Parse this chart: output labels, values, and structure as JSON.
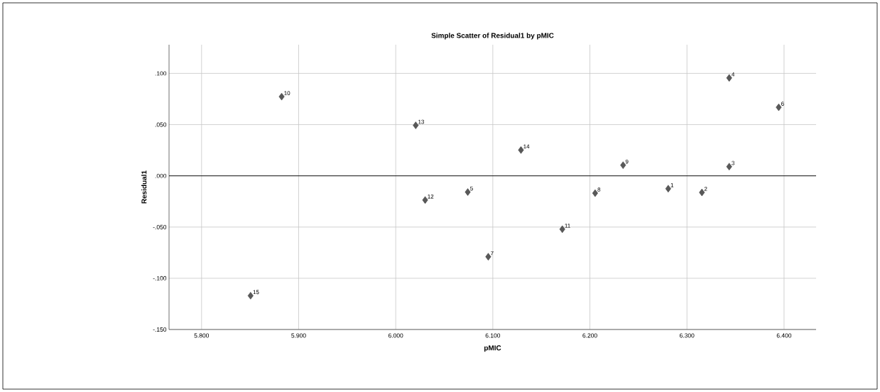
{
  "chart_data": {
    "type": "scatter",
    "title": "Simple Scatter of Residual1 by pMIC",
    "xlabel": "pMIC",
    "ylabel": "Residual1",
    "x": [
      6.2807,
      6.3154,
      6.3435,
      6.3435,
      6.0742,
      6.3945,
      6.0953,
      6.2054,
      6.2342,
      5.8825,
      6.1716,
      6.0303,
      6.0206,
      6.129,
      5.8505
    ],
    "series": [
      {
        "color": "#595959",
        "values": [
          -0.0125,
          -0.0162,
          0.009,
          0.0956,
          -0.0158,
          0.0669,
          -0.079,
          -0.0169,
          0.0104,
          0.0773,
          -0.0521,
          -0.0236,
          0.0493,
          0.0252,
          -0.117
        ]
      }
    ],
    "annotations": [
      {
        "text": "1",
        "x": 6.2807,
        "y": -0.0125
      },
      {
        "text": "2",
        "x": 6.3154,
        "y": -0.0162
      },
      {
        "text": "3",
        "x": 6.3435,
        "y": 0.009
      },
      {
        "text": "4",
        "x": 6.3435,
        "y": 0.0956
      },
      {
        "text": "5",
        "x": 6.0742,
        "y": -0.0158
      },
      {
        "text": "6",
        "x": 6.3945,
        "y": 0.0669
      },
      {
        "text": "7",
        "x": 6.0953,
        "y": -0.079
      },
      {
        "text": "8",
        "x": 6.2054,
        "y": -0.0169
      },
      {
        "text": "9",
        "x": 6.2342,
        "y": 0.0104
      },
      {
        "text": "10",
        "x": 5.8825,
        "y": 0.0773
      },
      {
        "text": "11",
        "x": 6.1716,
        "y": -0.0521
      },
      {
        "text": "12",
        "x": 6.0303,
        "y": -0.0236
      },
      {
        "text": "13",
        "x": 6.0206,
        "y": 0.0493
      },
      {
        "text": "14",
        "x": 6.129,
        "y": 0.0252
      },
      {
        "text": "15",
        "x": 5.8505,
        "y": -0.117
      }
    ],
    "xlim": [
      5.7665,
      6.433
    ],
    "ylim": [
      -0.15,
      0.128
    ],
    "xticks": [
      {
        "value": 5.8,
        "label": "5.800"
      },
      {
        "value": 5.9,
        "label": "5.900"
      },
      {
        "value": 6.0,
        "label": "6.000"
      },
      {
        "value": 6.1,
        "label": "6.100"
      },
      {
        "value": 6.2,
        "label": "6.200"
      },
      {
        "value": 6.3,
        "label": "6.300"
      },
      {
        "value": 6.4,
        "label": "6.400"
      }
    ],
    "yticks": [
      {
        "value": -0.15,
        "label": "-.150"
      },
      {
        "value": -0.1,
        "label": "-.100"
      },
      {
        "value": -0.05,
        "label": "-.050"
      },
      {
        "value": 0,
        "label": ".000"
      },
      {
        "value": 0.05,
        "label": ".050"
      },
      {
        "value": 0.1,
        "label": ".100"
      }
    ],
    "ref_lines": [
      {
        "axis": "y",
        "value": 0,
        "color": "#000000"
      }
    ],
    "grid": true,
    "marker": "diamond"
  }
}
